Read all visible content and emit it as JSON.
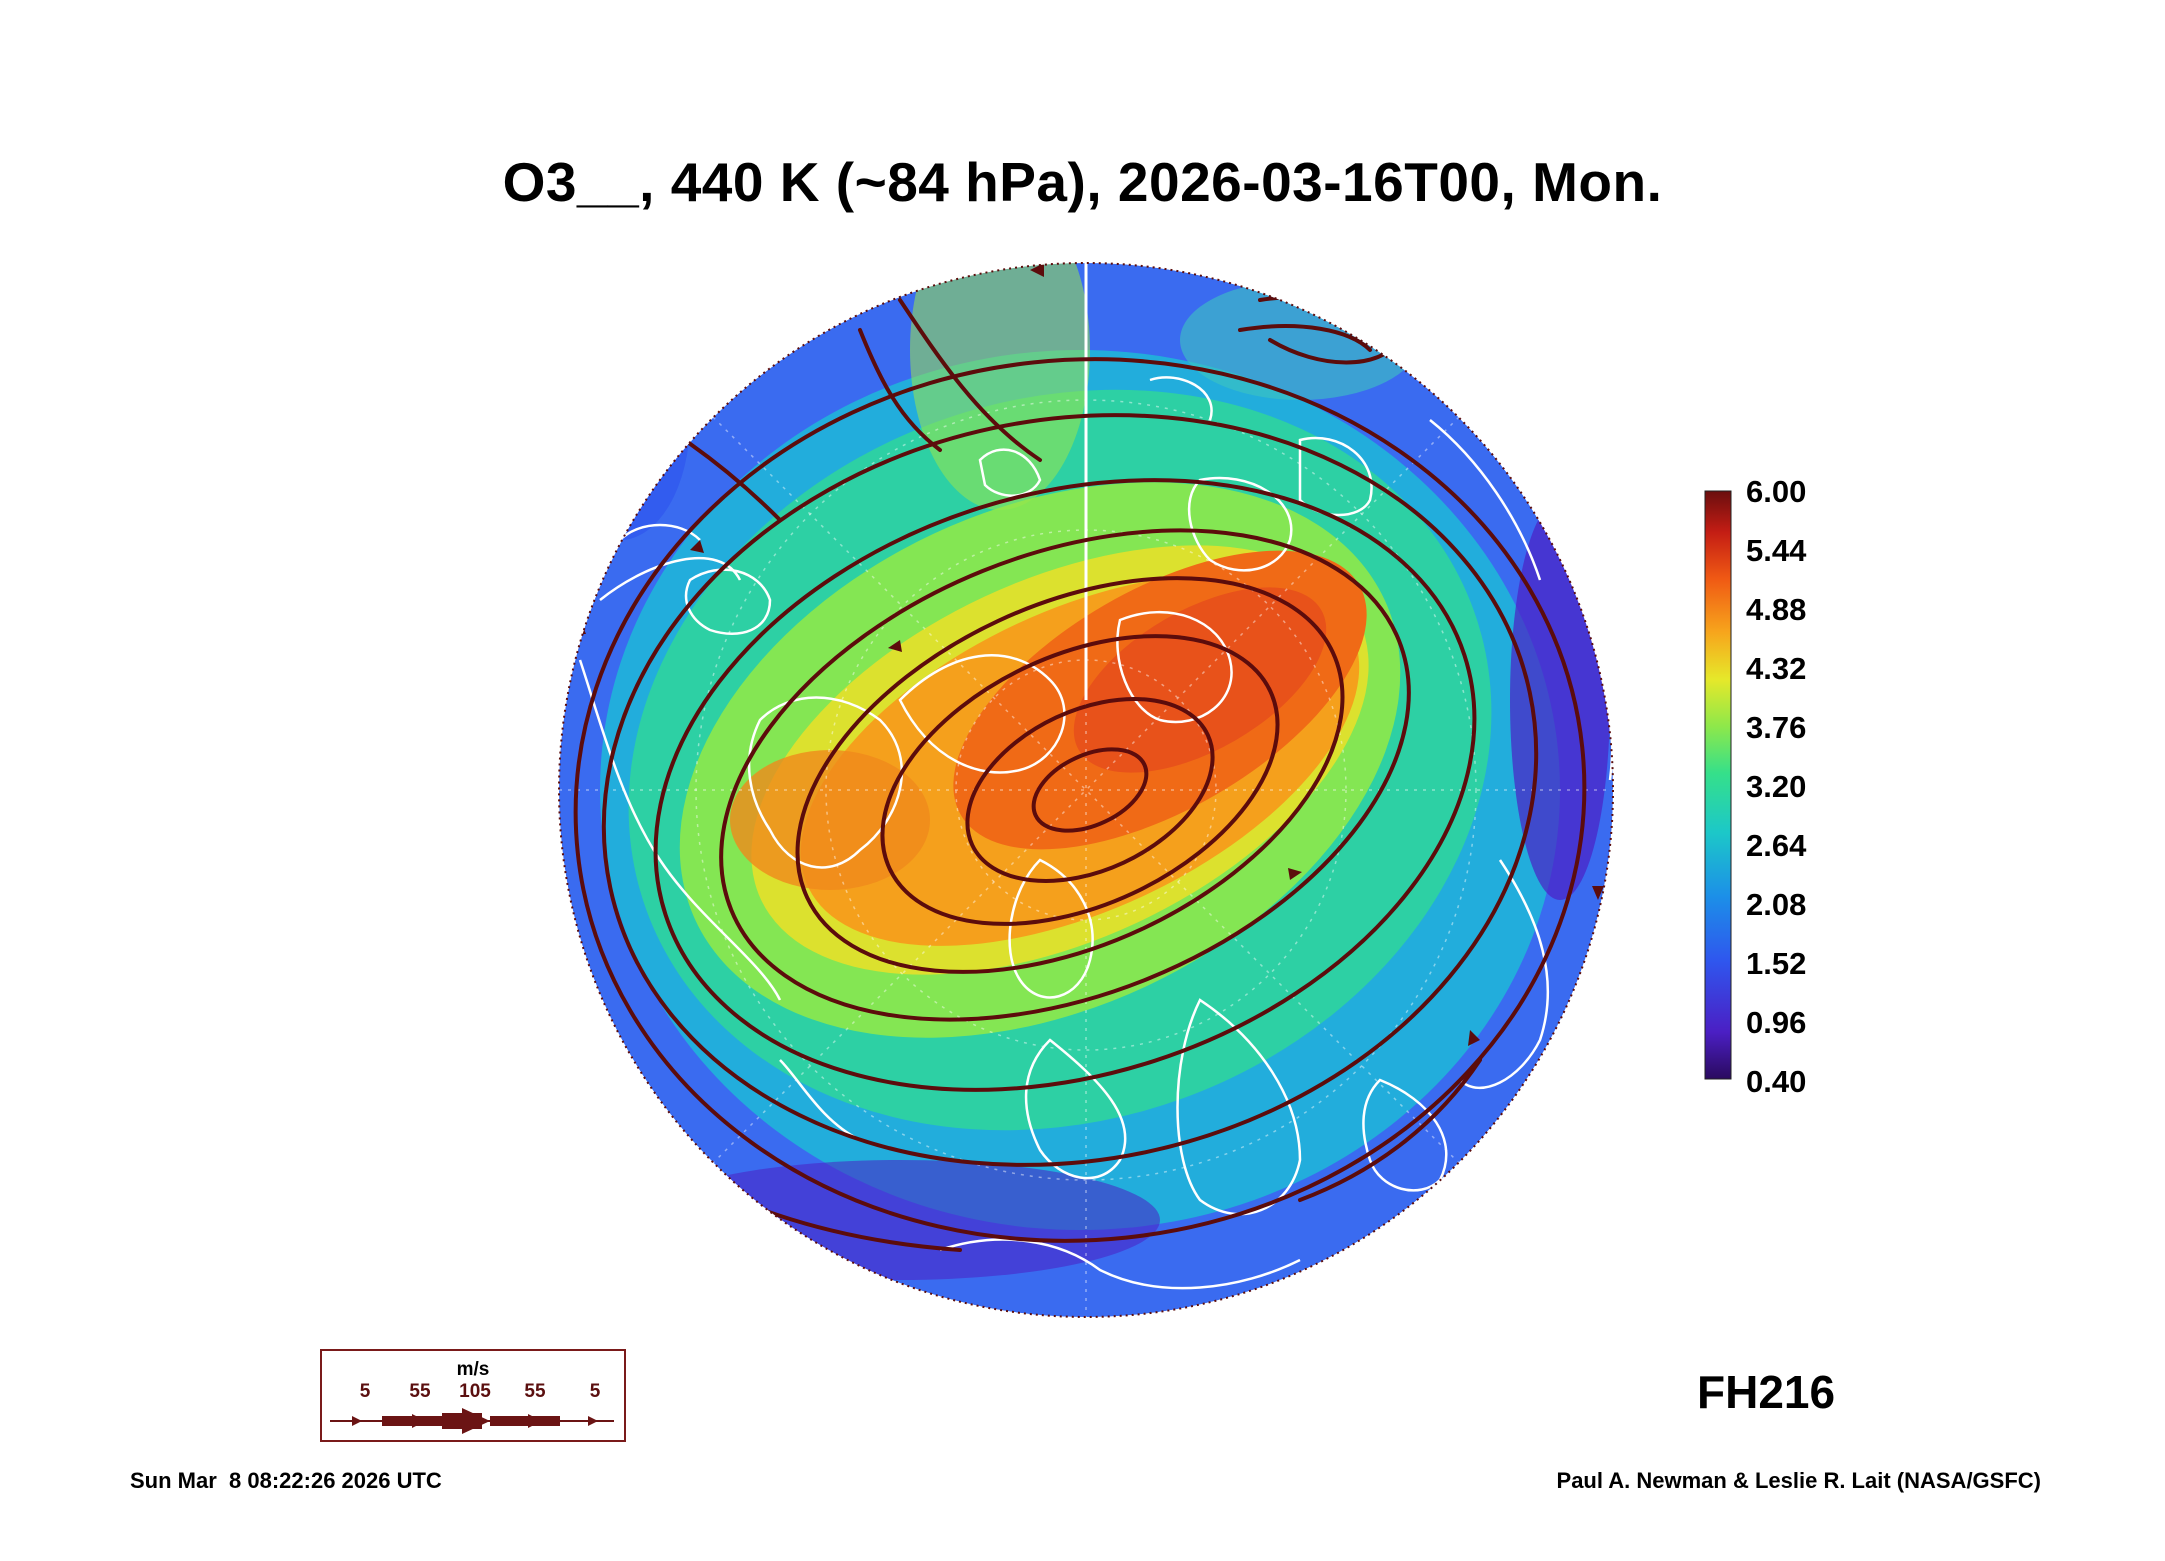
{
  "title": "O3__, 440 K (~84 hPa), 2026-03-16T00, Mon.",
  "colorbar": {
    "labels": [
      "6.00",
      "5.44",
      "4.88",
      "4.32",
      "3.76",
      "3.20",
      "2.64",
      "2.08",
      "1.52",
      "0.96",
      "0.40"
    ],
    "min": 0.4,
    "max": 6.0,
    "colors": [
      "#2a0a5e",
      "#4b1fc4",
      "#2f56ee",
      "#1c8fe8",
      "#1cc8c8",
      "#35e08a",
      "#8ee84a",
      "#e6e82a",
      "#f7a51c",
      "#f05a14",
      "#c41d14",
      "#6a0e0e"
    ]
  },
  "forecast_hour": "FH216",
  "wind_legend": {
    "unit": "m/s",
    "ticks": [
      "5",
      "55",
      "105",
      "55",
      "5"
    ],
    "color": "#6b1414"
  },
  "footer": {
    "timestamp": "Sun Mar  8 08:22:26 2026 UTC",
    "credit": "Paul A. Newman & Leslie R. Lait (NASA/GSFC)"
  },
  "colors": {
    "streamline": "#5c0c0c",
    "coastline": "#ffffff"
  }
}
